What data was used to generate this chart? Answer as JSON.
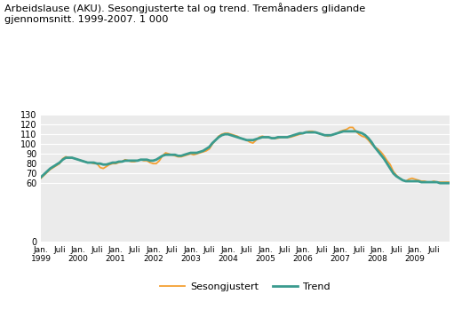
{
  "title": "Arbeidslause (AKU). Sesongjusterte tal og trend. Tremånaders glidande\ngjennomsnitt. 1999-2007. 1 000",
  "sesongjustert_color": "#F5A033",
  "trend_color": "#3A9B8E",
  "sesongjustert_lw": 1.3,
  "trend_lw": 2.0,
  "ylim": [
    0,
    130
  ],
  "yticks": [
    0,
    60,
    70,
    80,
    90,
    100,
    110,
    120,
    130
  ],
  "background_color": "#ffffff",
  "plot_bg_color": "#ebebeb",
  "legend_labels": [
    "Sesongjustert",
    "Trend"
  ],
  "sesongjustert": [
    65,
    68,
    71,
    74,
    76,
    78,
    80,
    85,
    87,
    86,
    86,
    85,
    84,
    83,
    82,
    81,
    81,
    80,
    80,
    76,
    75,
    77,
    79,
    80,
    80,
    81,
    82,
    84,
    83,
    82,
    82,
    83,
    84,
    83,
    83,
    81,
    80,
    80,
    83,
    88,
    91,
    90,
    89,
    88,
    87,
    87,
    88,
    89,
    90,
    89,
    90,
    91,
    92,
    93,
    95,
    100,
    104,
    108,
    110,
    111,
    111,
    110,
    109,
    108,
    106,
    105,
    104,
    102,
    101,
    104,
    107,
    108,
    107,
    107,
    106,
    106,
    106,
    107,
    107,
    107,
    107,
    108,
    109,
    110,
    111,
    112,
    113,
    113,
    112,
    111,
    110,
    109,
    108,
    109,
    110,
    111,
    113,
    114,
    115,
    117,
    117,
    113,
    110,
    108,
    107,
    104,
    100,
    97,
    95,
    92,
    88,
    83,
    79,
    72,
    68,
    65,
    63,
    62,
    64,
    65,
    64,
    63,
    62,
    62,
    61,
    61,
    62,
    61,
    61,
    61,
    61,
    61
  ],
  "trend": [
    66,
    69,
    72,
    75,
    77,
    79,
    81,
    84,
    86,
    86,
    86,
    85,
    84,
    83,
    82,
    81,
    81,
    81,
    80,
    80,
    79,
    79,
    80,
    81,
    81,
    82,
    82,
    83,
    83,
    83,
    83,
    83,
    84,
    84,
    84,
    83,
    83,
    84,
    86,
    88,
    89,
    89,
    89,
    89,
    88,
    88,
    89,
    90,
    91,
    91,
    91,
    92,
    93,
    95,
    97,
    101,
    104,
    107,
    109,
    110,
    110,
    109,
    108,
    107,
    106,
    105,
    104,
    104,
    104,
    105,
    106,
    107,
    107,
    107,
    106,
    106,
    107,
    107,
    107,
    107,
    108,
    109,
    110,
    111,
    111,
    112,
    112,
    112,
    112,
    111,
    110,
    109,
    109,
    109,
    110,
    111,
    112,
    113,
    113,
    113,
    113,
    113,
    112,
    111,
    109,
    106,
    102,
    97,
    93,
    89,
    85,
    80,
    75,
    70,
    67,
    65,
    63,
    62,
    62,
    62,
    62,
    62,
    61,
    61,
    61,
    61,
    61,
    61,
    60,
    60,
    60,
    60
  ]
}
